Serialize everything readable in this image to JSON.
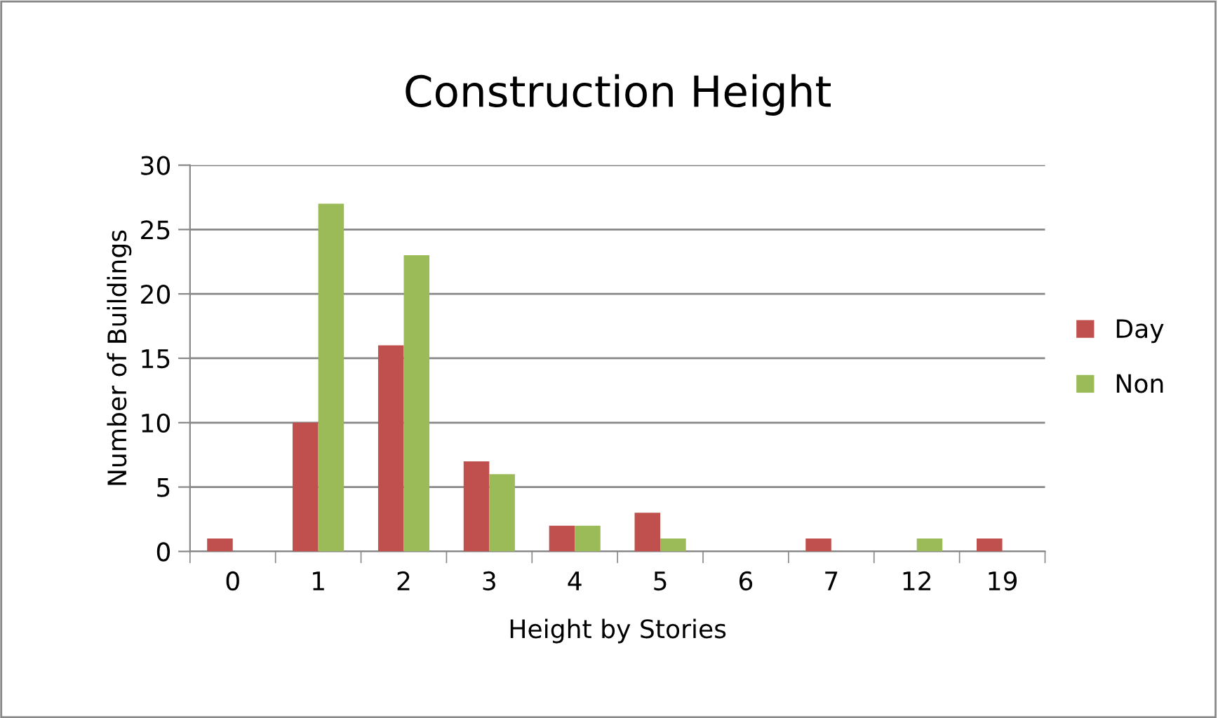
{
  "chart_data": {
    "type": "bar",
    "title": "Construction Height",
    "xlabel": "Height by Stories",
    "ylabel": "Number of Buildings",
    "categories": [
      "0",
      "1",
      "2",
      "3",
      "4",
      "5",
      "6",
      "7",
      "12",
      "19"
    ],
    "series": [
      {
        "name": "Day",
        "color": "#c0504d",
        "values": [
          1,
          10,
          16,
          7,
          2,
          3,
          0,
          1,
          0,
          1
        ]
      },
      {
        "name": "Non",
        "color": "#9bbb59",
        "values": [
          0,
          27,
          23,
          6,
          2,
          1,
          0,
          0,
          1,
          0
        ]
      }
    ],
    "ylim": [
      0,
      30
    ],
    "yticks": [
      0,
      5,
      10,
      15,
      20,
      25,
      30
    ],
    "grid": "y",
    "legend": "right"
  }
}
